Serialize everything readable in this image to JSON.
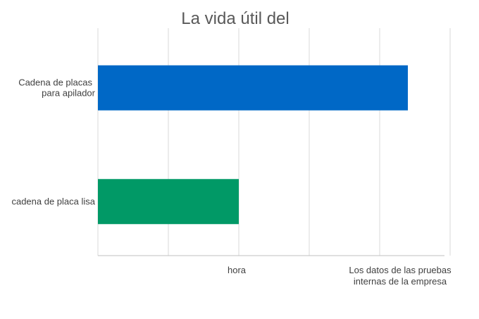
{
  "chart_data": {
    "type": "bar",
    "orientation": "horizontal",
    "title": "La vida útil del",
    "categories": [
      {
        "lines": [
          "Cadena de placas",
          "para apilador"
        ],
        "value": 4.4,
        "color": "#0068c6"
      },
      {
        "lines": [
          "cadena de placa lisa"
        ],
        "value": 2.0,
        "color": "#019966"
      }
    ],
    "xlim": [
      0,
      5
    ],
    "gridlines": [
      0,
      1,
      2,
      3,
      4,
      5
    ],
    "x_annotations": [
      {
        "at": 2,
        "lines": [
          "hora"
        ]
      },
      {
        "at": 4,
        "lines": [
          "Los datos de las pruebas",
          "internas de la empresa"
        ]
      }
    ],
    "grid": true,
    "legend": "none"
  }
}
